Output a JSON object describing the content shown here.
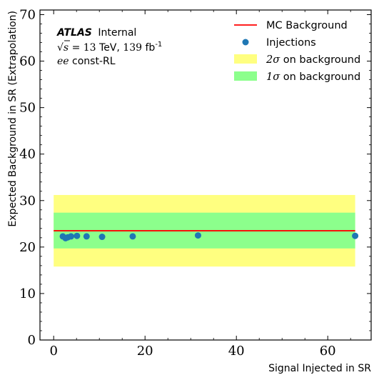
{
  "chart_data": {
    "type": "scatter",
    "xlabel": "Signal Injected in SR",
    "ylabel": "Expected Background in SR (Extrapolation)",
    "xlim": [
      -3,
      69.5
    ],
    "ylim": [
      0,
      71
    ],
    "xticks": [
      0,
      20,
      40,
      60
    ],
    "yticks": [
      0,
      10,
      20,
      30,
      40,
      50,
      60,
      70
    ],
    "xtick_labels": [
      "0",
      "20",
      "40",
      "60"
    ],
    "ytick_labels": [
      "0",
      "10",
      "20",
      "30",
      "40",
      "50",
      "60",
      "70"
    ],
    "colors": {
      "background_line": "#ff0000",
      "injections": "#1f77b4",
      "band_2sigma": "#ffff80",
      "band_1sigma": "#8cff8c"
    },
    "background_line": {
      "name": "MC Background",
      "y": 23.5,
      "x_range": [
        0,
        66
      ]
    },
    "band_2sigma": {
      "name": "2σ on background",
      "y_low": 15.8,
      "y_high": 31.2,
      "x_range": [
        0,
        66
      ]
    },
    "band_1sigma": {
      "name": "1σ on background",
      "y_low": 19.7,
      "y_high": 27.4,
      "x_range": [
        0,
        66
      ]
    },
    "series": [
      {
        "name": "Injections",
        "x": [
          2.0,
          2.6,
          3.1,
          3.8,
          5.1,
          7.2,
          10.6,
          17.3,
          31.6,
          66.0
        ],
        "y": [
          22.3,
          21.9,
          22.1,
          22.3,
          22.4,
          22.3,
          22.2,
          22.3,
          22.5,
          22.4
        ]
      }
    ],
    "legend": {
      "position": "top-right",
      "entries": [
        "MC Background",
        "Injections",
        "2σ on background",
        "1σ on background"
      ]
    },
    "grid": false
  },
  "annotation": {
    "experiment": "ATLAS",
    "status": "Internal",
    "energy_prefix": "s",
    "energy_value": "= 13",
    "energy_unit": "TeV,",
    "lumi_value": "139",
    "lumi_unit": "fb",
    "lumi_exp": "-1",
    "selection_math": "ee",
    "selection_text": "const-RL"
  },
  "legend_labels": {
    "line": "MC Background",
    "points": "Injections",
    "sigma2_math": "2σ",
    "sigma1_math": "1σ",
    "band_suffix": "on background"
  }
}
